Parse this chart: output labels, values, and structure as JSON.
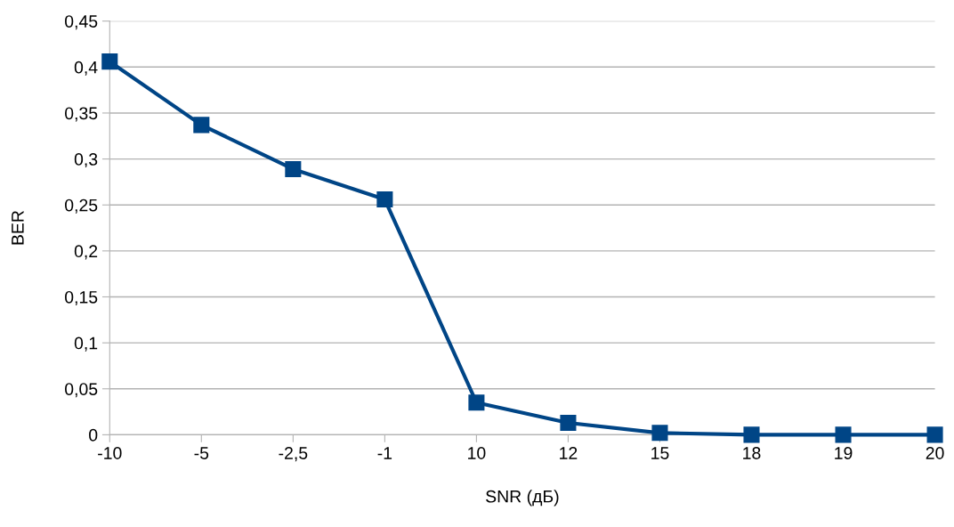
{
  "chart_data": {
    "type": "line",
    "xlabel": "SNR (дБ)",
    "ylabel": "BER",
    "categories": [
      "-10",
      "-5",
      "-2,5",
      "-1",
      "10",
      "12",
      "15",
      "18",
      "19",
      "20"
    ],
    "series": [
      {
        "color": "#004586",
        "values": [
          0.406,
          0.337,
          0.289,
          0.256,
          0.035,
          0.013,
          0.002,
          0,
          0,
          0
        ]
      }
    ],
    "ylim": [
      0,
      0.45
    ],
    "yticks": [
      0,
      {
        "value": 0.05,
        "label": "0,05"
      },
      {
        "value": 0.1,
        "label": "0,1"
      },
      {
        "value": 0.15,
        "label": "0,15"
      },
      {
        "value": 0.2,
        "label": "0,2"
      },
      {
        "value": 0.25,
        "label": "0,25"
      },
      {
        "value": 0.3,
        "label": "0,3"
      },
      {
        "value": 0.35,
        "label": "0,35"
      },
      {
        "value": 0.4,
        "label": "0,4"
      },
      {
        "value": 0.45,
        "label": "0,45"
      }
    ],
    "grid": "y",
    "marker": "square",
    "line_style": "solid",
    "legend": false
  }
}
